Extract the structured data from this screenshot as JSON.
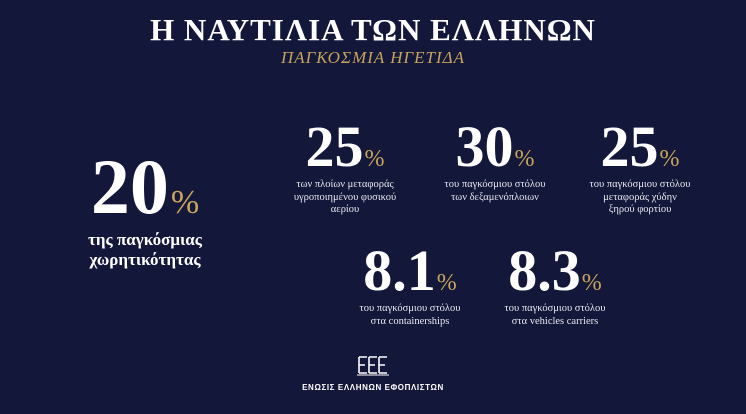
{
  "title": "Η ΝΑΥΤΙΛΙΑ ΤΩΝ ΕΛΛΗΝΩΝ",
  "subtitle": "ΠΑΓΚΟΣΜΙΑ ΗΓΕΤΙΔΑ",
  "main_stat": {
    "value": "20",
    "unit": "%",
    "caption_line1": "της παγκόσμιας",
    "caption_line2": "χωρητικότητας"
  },
  "stats": [
    {
      "value": "25",
      "unit": "%",
      "lines": [
        "των πλοίων μεταφοράς",
        "υγροποιημένου φυσικού",
        "αερίου"
      ]
    },
    {
      "value": "30",
      "unit": "%",
      "lines": [
        "του παγκόσμιου στόλου",
        "των δεξαμενόπλοιων"
      ]
    },
    {
      "value": "25",
      "unit": "%",
      "lines": [
        "του παγκόσμιου στόλου",
        "μεταφοράς χύδην",
        "ξηρού φορτίου"
      ]
    },
    {
      "value": "8.1",
      "unit": "%",
      "lines": [
        "του παγκόσμιου στόλου",
        "στα containerships"
      ]
    },
    {
      "value": "8.3",
      "unit": "%",
      "lines": [
        "του παγκόσμιου στόλου",
        "στα vehicles carriers"
      ]
    }
  ],
  "logo": {
    "text": "ΕΝΩΣΙΣ ΕΛΛΗΝΩΝ ΕΦΟΠΛΙΣΤΩΝ",
    "icon": "union-greek-shipowners-logo-icon"
  },
  "colors": {
    "background": "#13173a",
    "accent": "#c9a45c",
    "text": "#ffffff"
  }
}
